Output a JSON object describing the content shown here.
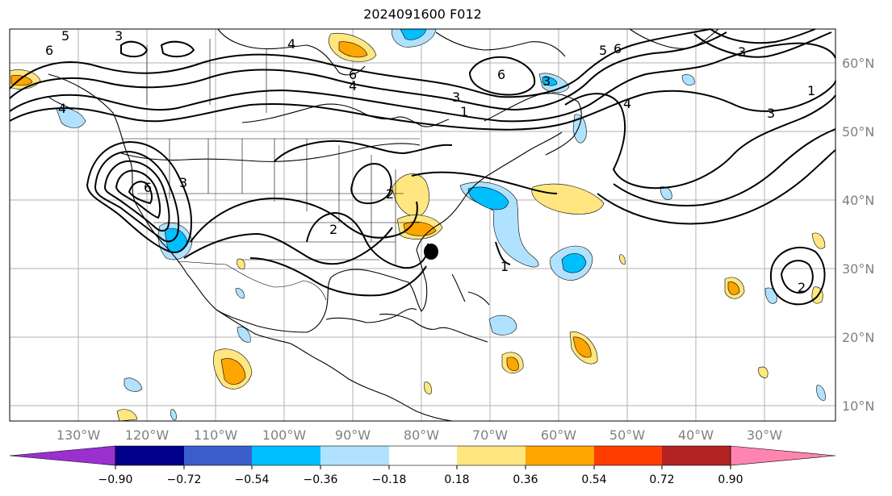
{
  "title": "2024091600 F012",
  "map": {
    "lon_labels": [
      "130°W",
      "120°W",
      "110°W",
      "100°W",
      "90°W",
      "80°W",
      "70°W",
      "60°W",
      "50°W",
      "40°W",
      "30°W"
    ],
    "lat_labels": [
      "60°N",
      "50°N",
      "40°N",
      "30°N",
      "20°N",
      "10°N"
    ],
    "contour_labels": [
      "6",
      "5",
      "4",
      "3",
      "4",
      "6",
      "4",
      "3",
      "1",
      "6",
      "3",
      "5",
      "6",
      "4",
      "3",
      "6",
      "3",
      "2",
      "2",
      "1",
      "3",
      "1",
      "2"
    ]
  },
  "colorbar": {
    "ticks": [
      "−0.90",
      "−0.72",
      "−0.54",
      "−0.36",
      "−0.18",
      "0.18",
      "0.36",
      "0.54",
      "0.72",
      "0.90"
    ],
    "colors": [
      "#9b30d0",
      "#00008b",
      "#3a5fcd",
      "#00bfff",
      "#b0e2ff",
      "#ffffff",
      "#ffe680",
      "#ffa500",
      "#ff3d00",
      "#b22222",
      "#ff85b0"
    ]
  }
}
